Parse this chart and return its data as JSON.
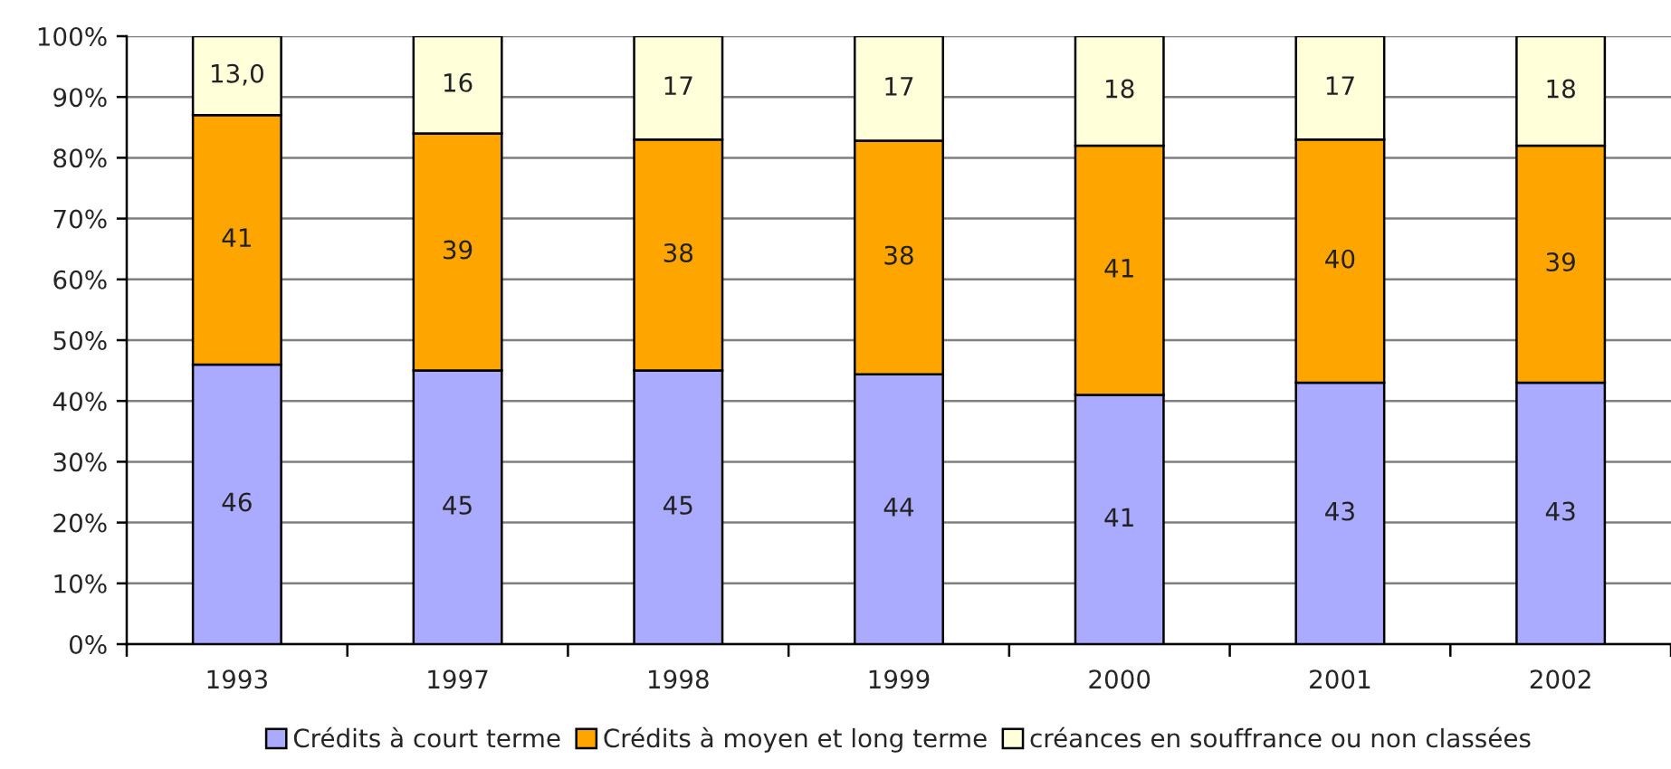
{
  "chart_data": {
    "type": "bar",
    "stacked": true,
    "categories": [
      "1993",
      "1997",
      "1998",
      "1999",
      "2000",
      "2001",
      "2002"
    ],
    "series": [
      {
        "name": "Crédits à court terme",
        "color": "#aaaaff",
        "values": [
          46,
          45,
          45,
          44.4,
          41,
          43,
          43
        ],
        "value_labels": [
          "46",
          "45",
          "45",
          "44",
          "41",
          "43",
          "43"
        ]
      },
      {
        "name": "Crédits à moyen et long terme",
        "color": "#ffa500",
        "values": [
          41,
          39,
          38,
          38.4,
          41,
          40,
          39
        ],
        "value_labels": [
          "41",
          "39",
          "38",
          "38",
          "41",
          "40",
          "39"
        ]
      },
      {
        "name": "créances en souffrance ou non classées",
        "color": "#ffffd9",
        "values": [
          13,
          16,
          17,
          17.2,
          18,
          17,
          18
        ],
        "value_labels": [
          "13,0",
          "16",
          "17",
          "17",
          "18",
          "17",
          "18"
        ]
      }
    ],
    "ylim": [
      0,
      100
    ],
    "yticks": [
      {
        "value": 0,
        "label": "0%"
      },
      {
        "value": 10,
        "label": "10%"
      },
      {
        "value": 20,
        "label": "20%"
      },
      {
        "value": 30,
        "label": "30%"
      },
      {
        "value": 40,
        "label": "40%"
      },
      {
        "value": 50,
        "label": "50%"
      },
      {
        "value": 60,
        "label": "60%"
      },
      {
        "value": 70,
        "label": "70%"
      },
      {
        "value": 80,
        "label": "80%"
      },
      {
        "value": 90,
        "label": "90%"
      },
      {
        "value": 100,
        "label": "100%"
      }
    ],
    "grid": "y",
    "legend": "bottom"
  }
}
